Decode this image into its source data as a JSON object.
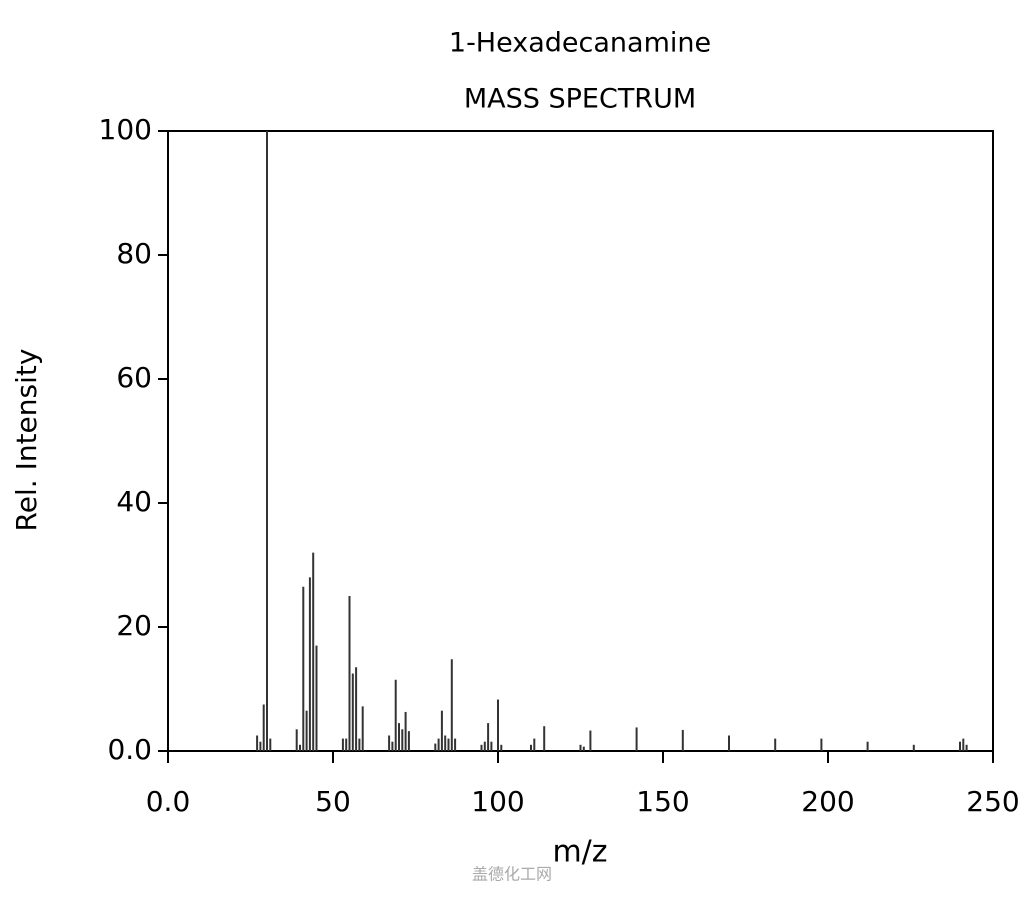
{
  "chart_data": {
    "type": "stem",
    "title": "1-Hexadecanamine",
    "subtitle": "MASS SPECTRUM",
    "x_label": "m/z",
    "y_label": "Rel. Intensity",
    "watermark": "盖德化工网",
    "color": "#333333",
    "xlim": [
      0,
      250
    ],
    "ylim": [
      0,
      100
    ],
    "xticks": [
      {
        "value": 0,
        "label": "0.0"
      },
      50,
      100,
      150,
      200,
      250
    ],
    "yticks": [
      {
        "value": 0,
        "label": "0.0"
      },
      20,
      40,
      60,
      80,
      100
    ],
    "x": [
      27,
      28,
      29,
      30,
      31,
      39,
      40,
      41,
      42,
      43,
      44,
      45,
      53,
      54,
      55,
      56,
      57,
      58,
      59,
      67,
      68,
      69,
      70,
      71,
      72,
      73,
      81,
      82,
      83,
      84,
      85,
      86,
      87,
      95,
      96,
      97,
      98,
      100,
      101,
      110,
      111,
      114,
      125,
      126,
      128,
      142,
      156,
      170,
      184,
      198,
      212,
      226,
      240,
      241,
      242
    ],
    "values": [
      2.5,
      1.5,
      7.5,
      100,
      2,
      3.5,
      1,
      26.5,
      6.5,
      28,
      32,
      17,
      2,
      2,
      25,
      12.5,
      13.5,
      2,
      7.2,
      2.5,
      1.5,
      11.5,
      4.5,
      3.5,
      6.3,
      3.2,
      1.2,
      2,
      6.5,
      2.5,
      2,
      14.8,
      2,
      1,
      1.5,
      4.5,
      1.5,
      8.3,
      1,
      1,
      2,
      4,
      1,
      0.7,
      3.3,
      3.8,
      3.4,
      2.5,
      2,
      2,
      1.5,
      1,
      1.5,
      2,
      1
    ]
  }
}
